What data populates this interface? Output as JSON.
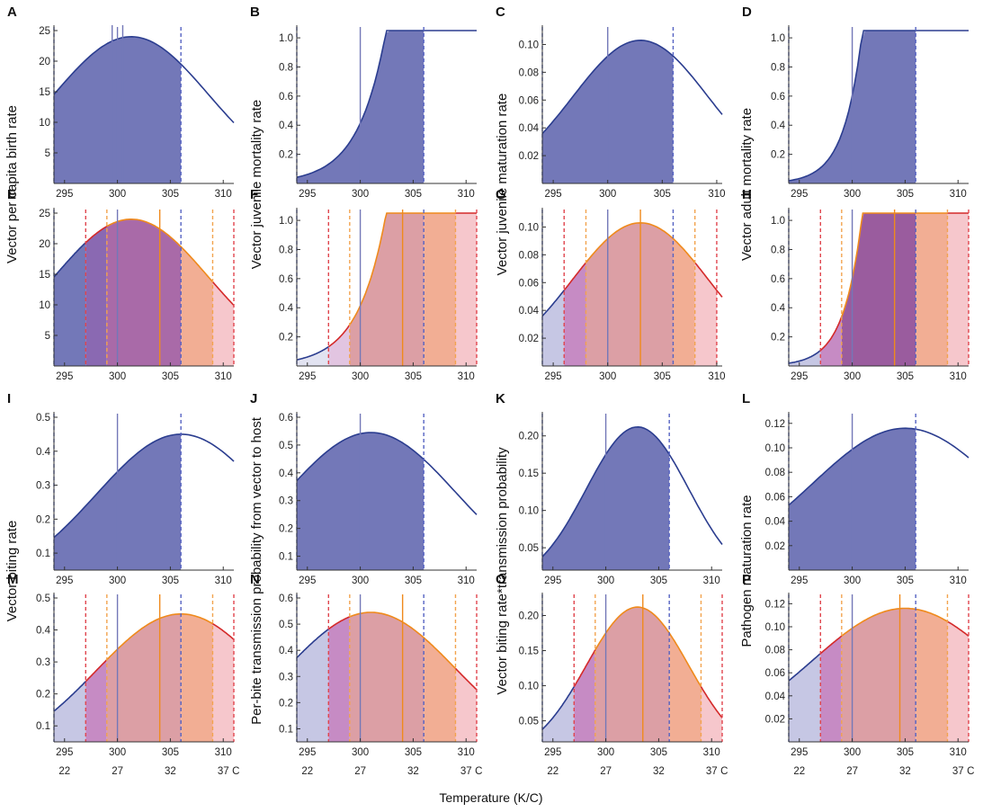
{
  "figure": {
    "x_axis_title": "Temperature (K/C)",
    "celsius_unit": "C"
  },
  "chart_data": [
    {
      "letter": "A",
      "type": "area",
      "variant": "single",
      "fn": "gauss",
      "peak": 24,
      "mu": 301.3,
      "sigma": 7.3,
      "ylim": [
        0,
        25
      ],
      "yticks": [
        5,
        10,
        15,
        20,
        25
      ],
      "ytick_labels": [
        "5",
        "10",
        "15",
        "20",
        "25"
      ],
      "xlim": [
        294,
        311
      ],
      "xticks": [
        295,
        300,
        305,
        310
      ],
      "shade_to": 306,
      "blue_line": 300,
      "extra_marks": [
        299.5,
        300.5
      ]
    },
    {
      "letter": "B",
      "type": "area",
      "variant": "single",
      "fn": "exp",
      "a": 0.0423,
      "b": 0.38,
      "ylim": [
        0,
        1.05
      ],
      "yticks": [
        0.2,
        0.4,
        0.6,
        0.8,
        1.0
      ],
      "ytick_labels": [
        "0.2",
        "0.4",
        "0.6",
        "0.8",
        "1.0"
      ],
      "xlim": [
        294,
        311
      ],
      "xticks": [
        295,
        300,
        305,
        310
      ],
      "shade_to": 306,
      "blue_line": 300,
      "extra_marks": []
    },
    {
      "letter": "C",
      "type": "area",
      "variant": "single",
      "fn": "gauss",
      "peak": 0.103,
      "mu": 303.0,
      "sigma": 6.2,
      "ylim": [
        0,
        0.11
      ],
      "yticks": [
        0.02,
        0.04,
        0.06,
        0.08,
        0.1
      ],
      "ytick_labels": [
        "0.02",
        "0.04",
        "0.06",
        "0.08",
        "0.10"
      ],
      "xlim": [
        294,
        310.5
      ],
      "xticks": [
        295,
        300,
        305,
        310
      ],
      "shade_to": 306,
      "blue_line": 300,
      "extra_marks": []
    },
    {
      "letter": "D",
      "type": "area",
      "variant": "single",
      "fn": "exp",
      "a": 0.0191,
      "b": 0.575,
      "ylim": [
        0,
        1.05
      ],
      "yticks": [
        0.2,
        0.4,
        0.6,
        0.8,
        1.0
      ],
      "ytick_labels": [
        "0.2",
        "0.4",
        "0.6",
        "0.8",
        "1.0"
      ],
      "xlim": [
        294,
        311
      ],
      "xticks": [
        295,
        300,
        305,
        310
      ],
      "shade_to": 306,
      "blue_line": 300,
      "extra_marks": []
    },
    {
      "letter": "E",
      "type": "area",
      "variant": "combined",
      "fn": "gauss",
      "peak": 24,
      "mu": 301.3,
      "sigma": 7.3,
      "ylim": [
        0,
        25
      ],
      "yticks": [
        5,
        10,
        15,
        20,
        25
      ],
      "ytick_labels": [
        "5",
        "10",
        "15",
        "20",
        "25"
      ],
      "xlim": [
        294,
        311
      ],
      "xticks": [
        295,
        300,
        305,
        310
      ],
      "shade_to": 306,
      "blue_line": 300,
      "bounds": {
        "red_lo": 297,
        "orange_lo": 299,
        "blue_hi": 306,
        "orange_hi": 309,
        "red_hi": 311
      },
      "orange_line": 304,
      "region_blue_start": 294
    },
    {
      "letter": "F",
      "type": "area",
      "variant": "combined",
      "fn": "exp",
      "a": 0.0423,
      "b": 0.38,
      "ylim": [
        0,
        1.05
      ],
      "yticks": [
        0.2,
        0.4,
        0.6,
        0.8,
        1.0
      ],
      "ytick_labels": [
        "0.2",
        "0.4",
        "0.6",
        "0.8",
        "1.0"
      ],
      "xlim": [
        294,
        311
      ],
      "xticks": [
        295,
        300,
        305,
        310
      ],
      "shade_to": 306,
      "blue_line": 300,
      "bounds": {
        "red_lo": 297,
        "orange_lo": 299,
        "blue_hi": 306,
        "orange_hi": 309,
        "red_hi": 311
      },
      "orange_line": 304,
      "region_blue_start": 294
    },
    {
      "letter": "G",
      "type": "area",
      "variant": "combined",
      "fn": "gauss",
      "peak": 0.103,
      "mu": 303.0,
      "sigma": 6.2,
      "ylim": [
        0,
        0.11
      ],
      "yticks": [
        0.02,
        0.04,
        0.06,
        0.08,
        0.1
      ],
      "ytick_labels": [
        "0.02",
        "0.04",
        "0.06",
        "0.08",
        "0.10"
      ],
      "xlim": [
        294,
        310.5
      ],
      "xticks": [
        295,
        300,
        305,
        310
      ],
      "shade_to": 306,
      "blue_line": 300,
      "bounds": {
        "red_lo": 296,
        "orange_lo": 298,
        "blue_hi": 306,
        "orange_hi": 308,
        "red_hi": 310
      },
      "orange_line": 303,
      "region_blue_start": 294
    },
    {
      "letter": "H",
      "type": "area",
      "variant": "combined",
      "fn": "exp",
      "a": 0.0191,
      "b": 0.575,
      "ylim": [
        0,
        1.05
      ],
      "yticks": [
        0.2,
        0.4,
        0.6,
        0.8,
        1.0
      ],
      "ytick_labels": [
        "0.2",
        "0.4",
        "0.6",
        "0.8",
        "1.0"
      ],
      "xlim": [
        294,
        311
      ],
      "xticks": [
        295,
        300,
        305,
        310
      ],
      "shade_to": 306,
      "blue_line": 300,
      "bounds": {
        "red_lo": 297,
        "orange_lo": 299,
        "blue_hi": 306,
        "orange_hi": 309,
        "red_hi": 311
      },
      "orange_line": 304,
      "region_blue_start": 294
    },
    {
      "letter": "I",
      "type": "area",
      "variant": "single",
      "fn": "gauss",
      "peak": 0.45,
      "mu": 306.0,
      "sigma": 8.0,
      "ylim": [
        0.05,
        0.5
      ],
      "yticks": [
        0.1,
        0.2,
        0.3,
        0.4,
        0.5
      ],
      "ytick_labels": [
        "0.1",
        "0.2",
        "0.3",
        "0.4",
        "0.5"
      ],
      "xlim": [
        294,
        311
      ],
      "xticks": [
        295,
        300,
        305,
        310
      ],
      "shade_to": 306,
      "blue_line": 300,
      "extra_marks": []
    },
    {
      "letter": "J",
      "type": "area",
      "variant": "single",
      "fn": "gauss",
      "peak": 0.545,
      "mu": 301.0,
      "sigma": 8.0,
      "ylim": [
        0.05,
        0.6
      ],
      "yticks": [
        0.1,
        0.2,
        0.3,
        0.4,
        0.5,
        0.6
      ],
      "ytick_labels": [
        "0.1",
        "0.2",
        "0.3",
        "0.4",
        "0.5",
        "0.6"
      ],
      "xlim": [
        294,
        311
      ],
      "xticks": [
        295,
        300,
        305,
        310
      ],
      "shade_to": 306,
      "blue_line": 300,
      "extra_marks": []
    },
    {
      "letter": "K",
      "type": "area",
      "variant": "single",
      "fn": "gauss",
      "peak": 0.212,
      "mu": 303.0,
      "sigma": 4.85,
      "ylim": [
        0.02,
        0.225
      ],
      "yticks": [
        0.05,
        0.1,
        0.15,
        0.2
      ],
      "ytick_labels": [
        "0.05",
        "0.10",
        "0.15",
        "0.20"
      ],
      "xlim": [
        294,
        311
      ],
      "xticks": [
        295,
        300,
        305,
        310
      ],
      "shade_to": 306,
      "blue_line": 300,
      "extra_marks": []
    },
    {
      "letter": "L",
      "type": "area",
      "variant": "single",
      "fn": "gauss",
      "peak": 0.116,
      "mu": 305.0,
      "sigma": 8.8,
      "ylim": [
        0,
        0.125
      ],
      "yticks": [
        0.02,
        0.04,
        0.06,
        0.08,
        0.1,
        0.12
      ],
      "ytick_labels": [
        "0.02",
        "0.04",
        "0.06",
        "0.08",
        "0.10",
        "0.12"
      ],
      "xlim": [
        294,
        311
      ],
      "xticks": [
        295,
        300,
        305,
        310
      ],
      "shade_to": 306,
      "blue_line": 300,
      "extra_marks": []
    },
    {
      "letter": "M",
      "type": "area",
      "variant": "combined",
      "fn": "gauss",
      "peak": 0.45,
      "mu": 306.0,
      "sigma": 8.0,
      "ylim": [
        0.05,
        0.5
      ],
      "yticks": [
        0.1,
        0.2,
        0.3,
        0.4,
        0.5
      ],
      "ytick_labels": [
        "0.1",
        "0.2",
        "0.3",
        "0.4",
        "0.5"
      ],
      "xlim": [
        294,
        311
      ],
      "xticks": [
        295,
        300,
        305,
        310
      ],
      "shade_to": 306,
      "blue_line": 300,
      "bounds": {
        "red_lo": 297,
        "orange_lo": 299,
        "blue_hi": 306,
        "orange_hi": 309,
        "red_hi": 311
      },
      "orange_line": 304,
      "region_blue_start": 294,
      "celsius_ticks": [
        {
          "k": 295,
          "label": "22"
        },
        {
          "k": 300,
          "label": "27"
        },
        {
          "k": 305,
          "label": "32"
        },
        {
          "k": 310,
          "label": "37"
        }
      ]
    },
    {
      "letter": "N",
      "type": "area",
      "variant": "combined",
      "fn": "gauss",
      "peak": 0.545,
      "mu": 301.0,
      "sigma": 8.0,
      "ylim": [
        0.05,
        0.6
      ],
      "yticks": [
        0.1,
        0.2,
        0.3,
        0.4,
        0.5,
        0.6
      ],
      "ytick_labels": [
        "0.1",
        "0.2",
        "0.3",
        "0.4",
        "0.5",
        "0.6"
      ],
      "xlim": [
        294,
        311
      ],
      "xticks": [
        295,
        300,
        305,
        310
      ],
      "shade_to": 306,
      "blue_line": 300,
      "bounds": {
        "red_lo": 297,
        "orange_lo": 299,
        "blue_hi": 306,
        "orange_hi": 309,
        "red_hi": 311
      },
      "orange_line": 304,
      "region_blue_start": 294,
      "celsius_ticks": [
        {
          "k": 295,
          "label": "22"
        },
        {
          "k": 300,
          "label": "27"
        },
        {
          "k": 305,
          "label": "32"
        },
        {
          "k": 310,
          "label": "37"
        }
      ]
    },
    {
      "letter": "O",
      "type": "area",
      "variant": "combined",
      "fn": "gauss",
      "peak": 0.212,
      "mu": 303.0,
      "sigma": 4.85,
      "ylim": [
        0.02,
        0.225
      ],
      "yticks": [
        0.05,
        0.1,
        0.15,
        0.2
      ],
      "ytick_labels": [
        "0.05",
        "0.10",
        "0.15",
        "0.20"
      ],
      "xlim": [
        294,
        311
      ],
      "xticks": [
        295,
        300,
        305,
        310
      ],
      "shade_to": 306,
      "blue_line": 300,
      "bounds": {
        "red_lo": 297,
        "orange_lo": 299,
        "blue_hi": 306,
        "orange_hi": 309,
        "red_hi": 311
      },
      "orange_line": 303.5,
      "region_blue_start": 294,
      "celsius_ticks": [
        {
          "k": 295,
          "label": "22"
        },
        {
          "k": 300,
          "label": "27"
        },
        {
          "k": 305,
          "label": "32"
        },
        {
          "k": 310,
          "label": "37"
        }
      ]
    },
    {
      "letter": "P",
      "type": "area",
      "variant": "combined",
      "fn": "gauss",
      "peak": 0.116,
      "mu": 305.0,
      "sigma": 8.8,
      "ylim": [
        0,
        0.125
      ],
      "yticks": [
        0.02,
        0.04,
        0.06,
        0.08,
        0.1,
        0.12
      ],
      "ytick_labels": [
        "0.02",
        "0.04",
        "0.06",
        "0.08",
        "0.10",
        "0.12"
      ],
      "xlim": [
        294,
        311
      ],
      "xticks": [
        295,
        300,
        305,
        310
      ],
      "shade_to": 306,
      "blue_line": 300,
      "bounds": {
        "red_lo": 297,
        "orange_lo": 299,
        "blue_hi": 306,
        "orange_hi": 309,
        "red_hi": 311
      },
      "orange_line": 304.5,
      "region_blue_start": 294,
      "celsius_ticks": [
        {
          "k": 295,
          "label": "22"
        },
        {
          "k": 300,
          "label": "27"
        },
        {
          "k": 305,
          "label": "32"
        },
        {
          "k": 310,
          "label": "37"
        }
      ]
    }
  ],
  "row_labels": [
    {
      "text": "Vector per capita birth rate"
    },
    {
      "text": "Vector juvenile mortality rate"
    },
    {
      "text": "Vector juvenile maturation rate"
    },
    {
      "text": "Vector adult mortality rate"
    },
    {
      "text": "Vector biting rate"
    },
    {
      "text": "Per-bite transmission probability from vector to host"
    },
    {
      "text": "Vector biting rate*transmission probability"
    },
    {
      "text": "Pathogen maturation rate"
    }
  ],
  "colors": {
    "blue_fill": "#7378b8",
    "curve_blue": "#2b3d8f",
    "curve_red": "#d42a2a",
    "curve_orange": "#ef8a1c",
    "light_blue": "#c6c7e4",
    "purple": "#c68bc4",
    "rose": "#dc9fa5",
    "orange_fill": "#f2ae94",
    "pink": "#f6c7cc",
    "axis": "#333333",
    "dash_blue": "#5563c2",
    "dash_red": "#e0454e",
    "dash_orange": "#f2a34e"
  }
}
